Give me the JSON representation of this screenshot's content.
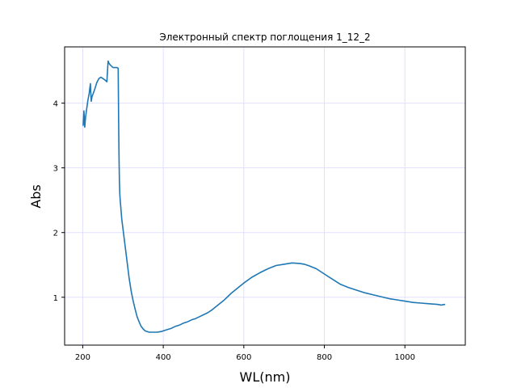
{
  "chart_data": {
    "type": "line",
    "title": "Электронный спектр поглощения 1_12_2",
    "xlabel": "WL(nm)",
    "ylabel": "Abs",
    "xlim": [
      155,
      1150
    ],
    "ylim": [
      0.26,
      4.87
    ],
    "x_ticks": [
      200,
      400,
      600,
      800,
      1000
    ],
    "y_ticks": [
      1,
      2,
      3,
      4
    ],
    "grid": true,
    "series_color": "#1f77b4",
    "grid_color": "#e0e0ff",
    "series": [
      {
        "x": [
          201,
          203,
          205,
          207,
          210,
          213,
          216,
          219,
          221,
          223,
          226,
          230,
          235,
          240,
          245,
          250,
          255,
          260,
          263,
          265,
          267,
          270,
          275,
          280,
          285,
          288,
          289,
          290,
          291,
          292,
          293,
          295,
          297,
          300,
          305,
          310,
          315,
          320,
          325,
          330,
          335,
          340,
          345,
          350,
          355,
          360,
          365,
          370,
          375,
          380,
          385,
          390,
          395,
          400,
          410,
          420,
          430,
          440,
          450,
          460,
          470,
          480,
          490,
          500,
          510,
          520,
          530,
          540,
          550,
          560,
          570,
          580,
          590,
          600,
          620,
          640,
          660,
          680,
          700,
          720,
          740,
          750,
          760,
          780,
          800,
          820,
          840,
          860,
          880,
          900,
          920,
          940,
          960,
          980,
          1000,
          1020,
          1040,
          1060,
          1080,
          1090,
          1100
        ],
        "y": [
          3.65,
          3.88,
          3.63,
          3.78,
          3.92,
          4.05,
          4.15,
          4.3,
          4.03,
          4.1,
          4.15,
          4.22,
          4.32,
          4.38,
          4.4,
          4.38,
          4.36,
          4.33,
          4.65,
          4.62,
          4.6,
          4.58,
          4.55,
          4.55,
          4.55,
          4.54,
          3.8,
          3.2,
          2.8,
          2.6,
          2.5,
          2.35,
          2.2,
          2.05,
          1.8,
          1.55,
          1.3,
          1.1,
          0.95,
          0.82,
          0.7,
          0.62,
          0.55,
          0.51,
          0.48,
          0.47,
          0.46,
          0.46,
          0.46,
          0.46,
          0.46,
          0.465,
          0.47,
          0.48,
          0.5,
          0.52,
          0.55,
          0.57,
          0.6,
          0.62,
          0.65,
          0.67,
          0.7,
          0.73,
          0.76,
          0.8,
          0.85,
          0.9,
          0.95,
          1.01,
          1.07,
          1.12,
          1.17,
          1.22,
          1.31,
          1.38,
          1.44,
          1.49,
          1.51,
          1.53,
          1.52,
          1.51,
          1.49,
          1.44,
          1.36,
          1.28,
          1.2,
          1.15,
          1.11,
          1.07,
          1.04,
          1.01,
          0.98,
          0.96,
          0.94,
          0.92,
          0.91,
          0.9,
          0.89,
          0.88,
          0.89
        ]
      }
    ]
  }
}
